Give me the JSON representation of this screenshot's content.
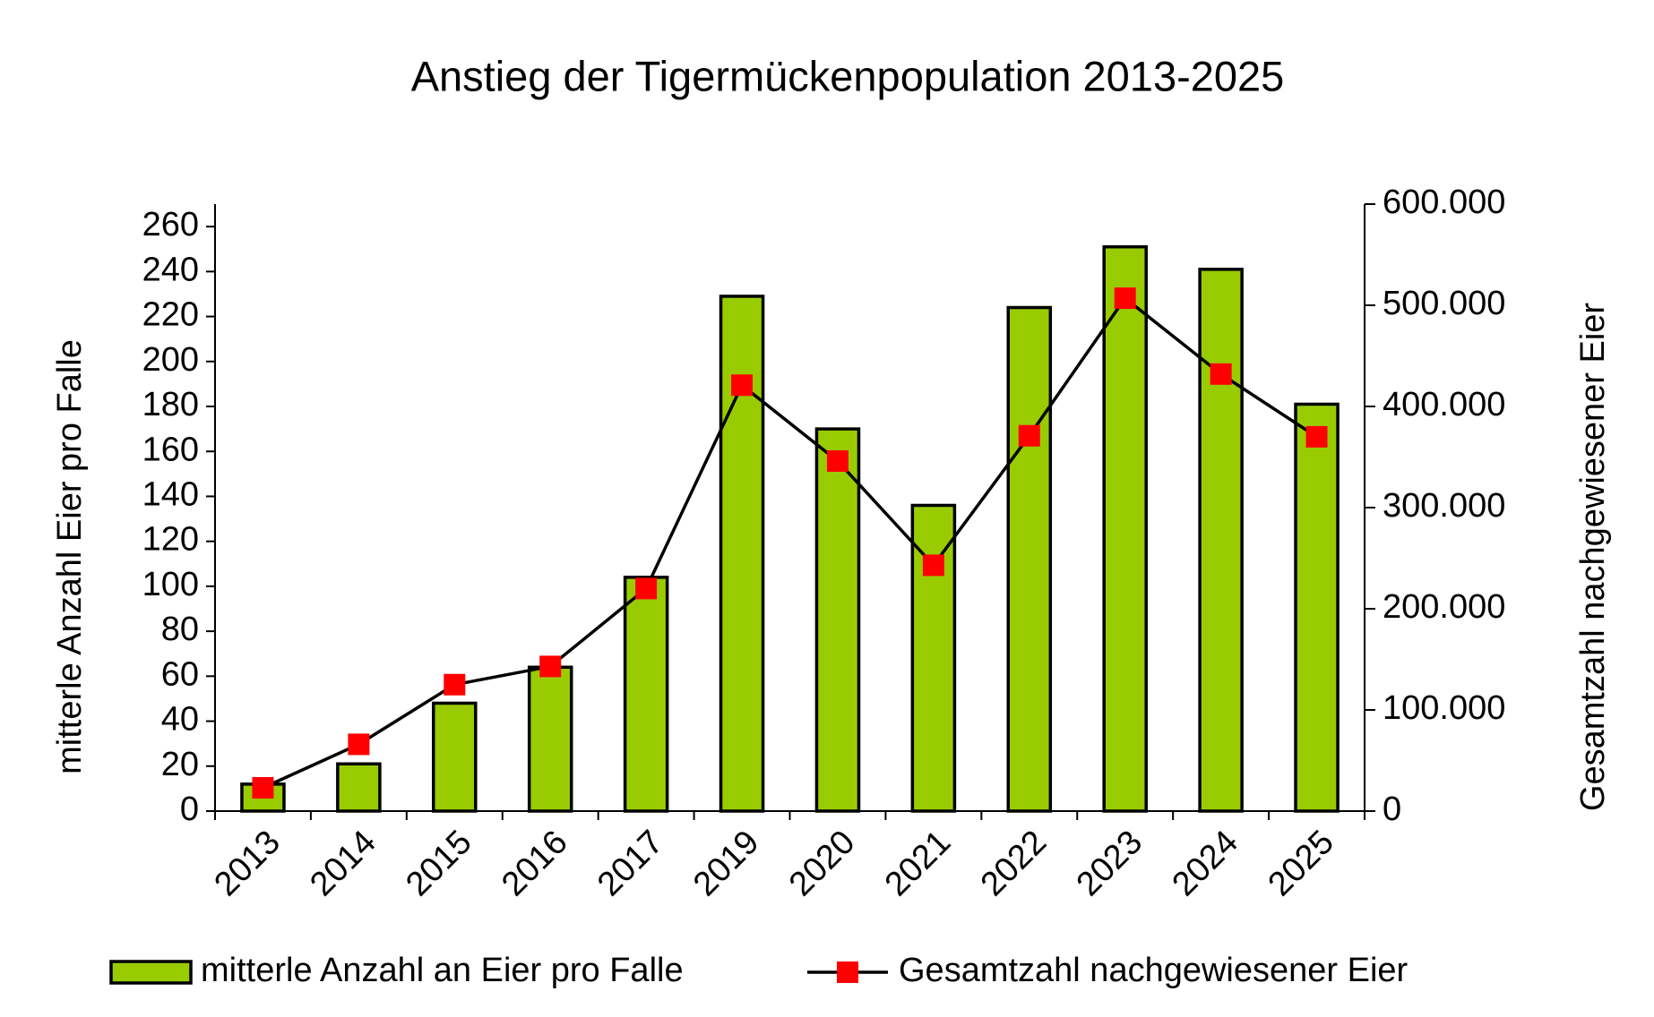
{
  "chart_data": {
    "type": "bar_line",
    "title": "Anstieg der Tigermückenpopulation 2013-2025",
    "y_label": "mitterle Anzahl Eier pro Falle",
    "y2_label": "Gesamtzahl nachgewiesener Eier",
    "categories": [
      "2013",
      "2014",
      "2015",
      "2016",
      "2017",
      "2019",
      "2020",
      "2021",
      "2022",
      "2023",
      "2024",
      "2025"
    ],
    "series": [
      {
        "name": "mitterle Anzahl an Eier pro Falle",
        "type": "bar",
        "color": "#99cc00",
        "values": [
          12,
          21,
          48,
          64,
          104,
          229,
          170,
          136,
          224,
          251,
          241,
          181
        ]
      },
      {
        "name": "Gesamtzahl nachgewiesener Eier",
        "type": "line",
        "axis": "y2",
        "color": "#000000",
        "marker_color": "#ff0000",
        "values": [
          23000,
          66000,
          125000,
          143000,
          220000,
          421000,
          346000,
          243000,
          371000,
          507000,
          432000,
          370000
        ]
      }
    ],
    "ylim": [
      0,
      270
    ],
    "yticks": [
      0,
      20,
      40,
      60,
      80,
      100,
      120,
      140,
      160,
      180,
      200,
      220,
      240,
      260
    ],
    "y2lim": [
      0,
      600000
    ],
    "y2ticks": [
      0,
      {
        "value": 100000,
        "label": "100.000"
      },
      {
        "value": 200000,
        "label": "200.000"
      },
      {
        "value": 300000,
        "label": "300.000"
      },
      {
        "value": 400000,
        "label": "400.000"
      },
      {
        "value": 500000,
        "label": "500.000"
      },
      {
        "value": 600000,
        "label": "600.000"
      }
    ],
    "legend": "bottom"
  }
}
